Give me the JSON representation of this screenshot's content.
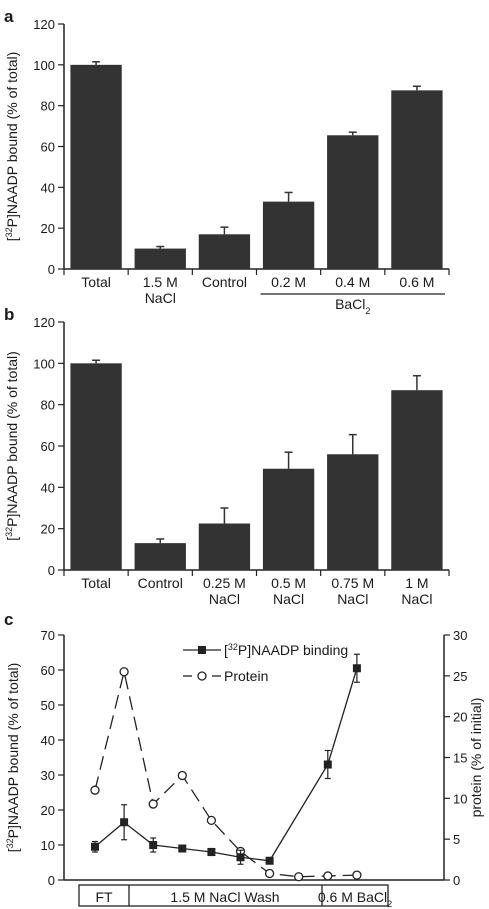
{
  "chart_data": [
    {
      "panel": "a",
      "type": "bar",
      "ylabel_sup": "32",
      "ylabel_pre": "[",
      "ylabel_post": "P]NAADP bound (% of total)",
      "ylim": [
        0,
        120
      ],
      "yticks": [
        0,
        20,
        40,
        60,
        80,
        100,
        120
      ],
      "categories": [
        "Total",
        "1.5 M\nNaCl",
        "Control",
        "0.2 M",
        "0.4 M",
        "0.6 M"
      ],
      "values": [
        100,
        10,
        17,
        33,
        65.5,
        87.5
      ],
      "errors": [
        1.5,
        1,
        3.5,
        4.5,
        1.5,
        2
      ],
      "group_label_base": "BaCl",
      "group_label_sub": "2",
      "color": "#333333"
    },
    {
      "panel": "b",
      "type": "bar",
      "ylabel_sup": "32",
      "ylabel_pre": "[",
      "ylabel_post": "P]NAADP bound (% of total)",
      "ylim": [
        0,
        120
      ],
      "yticks": [
        0,
        20,
        40,
        60,
        80,
        100,
        120
      ],
      "categories": [
        "Total",
        "Control",
        "0.25 M\nNaCl",
        "0.5 M\nNaCl",
        "0.75 M\nNaCl",
        "1 M\nNaCl"
      ],
      "values": [
        100,
        13,
        22.5,
        49,
        56,
        87
      ],
      "errors": [
        1.5,
        2,
        7.5,
        8,
        9.5,
        7
      ],
      "color": "#333333"
    },
    {
      "panel": "c",
      "type": "line",
      "ylabel_sup": "32",
      "ylabel_pre": "[",
      "ylabel_post": "P]NAADP bound (% of total)",
      "ylabel_right": "protein (% of initial)",
      "ylim": [
        0,
        70
      ],
      "yticks": [
        0,
        10,
        20,
        30,
        40,
        50,
        60,
        70
      ],
      "ylim_right": [
        0,
        30
      ],
      "yticks_right": [
        0,
        5,
        10,
        15,
        20,
        25,
        30
      ],
      "fractions": [
        1,
        2,
        3,
        4,
        5,
        6,
        7,
        8,
        9,
        10
      ],
      "series": [
        {
          "name_sup": "32",
          "name_pre": "[",
          "name_post": "P]NAADP binding",
          "axis": "left",
          "marker": "square",
          "x": [
            1,
            2,
            3,
            4,
            5,
            6,
            7,
            9,
            10
          ],
          "y": [
            9.5,
            16.5,
            10,
            9,
            8,
            6.5,
            5.5,
            33,
            60.5
          ],
          "err": [
            1.5,
            5,
            2,
            0.5,
            1,
            2,
            0.5,
            4,
            4
          ]
        },
        {
          "name": "Protein",
          "axis": "right",
          "marker": "circle",
          "dashed": true,
          "x": [
            1,
            2,
            3,
            4,
            5,
            6,
            7,
            8,
            9,
            10
          ],
          "y": [
            11,
            25.5,
            9.3,
            12.8,
            7.3,
            3.5,
            0.8,
            0.4,
            0.5,
            0.6
          ]
        }
      ],
      "segments": [
        {
          "label": "FT",
          "from": 1,
          "to": 1
        },
        {
          "label": "1.5 M NaCl Wash",
          "from": 2,
          "to": 7
        },
        {
          "label": "0.6 M BaCl",
          "sub": "2",
          "from": 8,
          "to": 10
        }
      ]
    }
  ]
}
